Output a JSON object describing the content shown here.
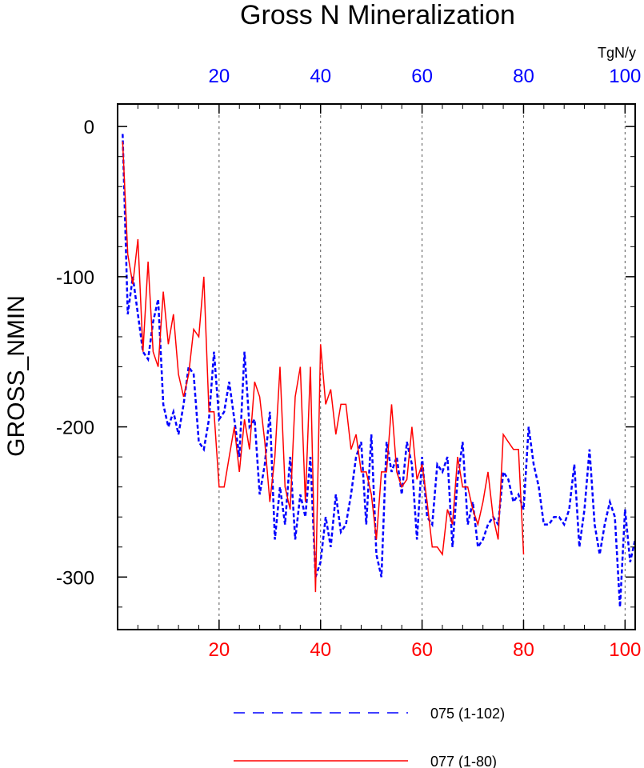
{
  "chart_data": {
    "type": "line",
    "title": "Gross N Mineralization",
    "ylabel": "GROSS_NMIN",
    "units": "TgN/y",
    "xlim": [
      0,
      102
    ],
    "ylim": [
      -335,
      15
    ],
    "x_ticks": [
      20,
      40,
      60,
      80,
      100
    ],
    "y_ticks": [
      0,
      -100,
      -200,
      -300
    ],
    "y_minor_step": 20,
    "x_minor_step": 4,
    "grid": "dashed vertical at major x ticks",
    "legend_position": "bottom",
    "colors": {
      "top_axis": "#0000ff",
      "bottom_axis": "#ff0000",
      "frame": "#000000"
    },
    "series": [
      {
        "name": "075 (1-102)",
        "color": "#0000ff",
        "dash": "dashed",
        "x_start": 1,
        "values": [
          -5,
          -125,
          -100,
          -125,
          -150,
          -155,
          -130,
          -115,
          -185,
          -200,
          -190,
          -205,
          -185,
          -160,
          -165,
          -210,
          -215,
          -195,
          -150,
          -195,
          -190,
          -170,
          -195,
          -220,
          -150,
          -200,
          -195,
          -245,
          -225,
          -190,
          -275,
          -240,
          -265,
          -220,
          -275,
          -245,
          -260,
          -220,
          -300,
          -290,
          -260,
          -280,
          -245,
          -270,
          -265,
          -245,
          -220,
          -210,
          -265,
          -205,
          -285,
          -300,
          -210,
          -230,
          -220,
          -245,
          -210,
          -225,
          -275,
          -220,
          -260,
          -265,
          -225,
          -230,
          -220,
          -280,
          -235,
          -210,
          -265,
          -250,
          -280,
          -275,
          -265,
          -260,
          -265,
          -230,
          -235,
          -250,
          -245,
          -255,
          -200,
          -225,
          -240,
          -265,
          -265,
          -260,
          -260,
          -265,
          -255,
          -225,
          -280,
          -255,
          -215,
          -265,
          -285,
          -265,
          -250,
          -260,
          -320,
          -255,
          -290,
          -275
        ]
      },
      {
        "name": "077 (1-80)",
        "color": "#ff0000",
        "dash": "solid",
        "x_start": 1,
        "values": [
          -10,
          -85,
          -105,
          -75,
          -150,
          -90,
          -150,
          -160,
          -110,
          -145,
          -125,
          -165,
          -180,
          -165,
          -135,
          -140,
          -100,
          -190,
          -190,
          -240,
          -240,
          -220,
          -200,
          -230,
          -195,
          -215,
          -170,
          -180,
          -210,
          -250,
          -220,
          -160,
          -240,
          -255,
          -180,
          -160,
          -250,
          -160,
          -310,
          -145,
          -185,
          -175,
          -205,
          -185,
          -185,
          -215,
          -205,
          -230,
          -230,
          -245,
          -275,
          -230,
          -230,
          -185,
          -230,
          -240,
          -235,
          -200,
          -235,
          -225,
          -250,
          -280,
          -280,
          -285,
          -255,
          -265,
          -220,
          -240,
          -240,
          -255,
          -265,
          -250,
          -230,
          -260,
          -275,
          -205,
          -210,
          -215,
          -215,
          -285
        ]
      }
    ]
  }
}
